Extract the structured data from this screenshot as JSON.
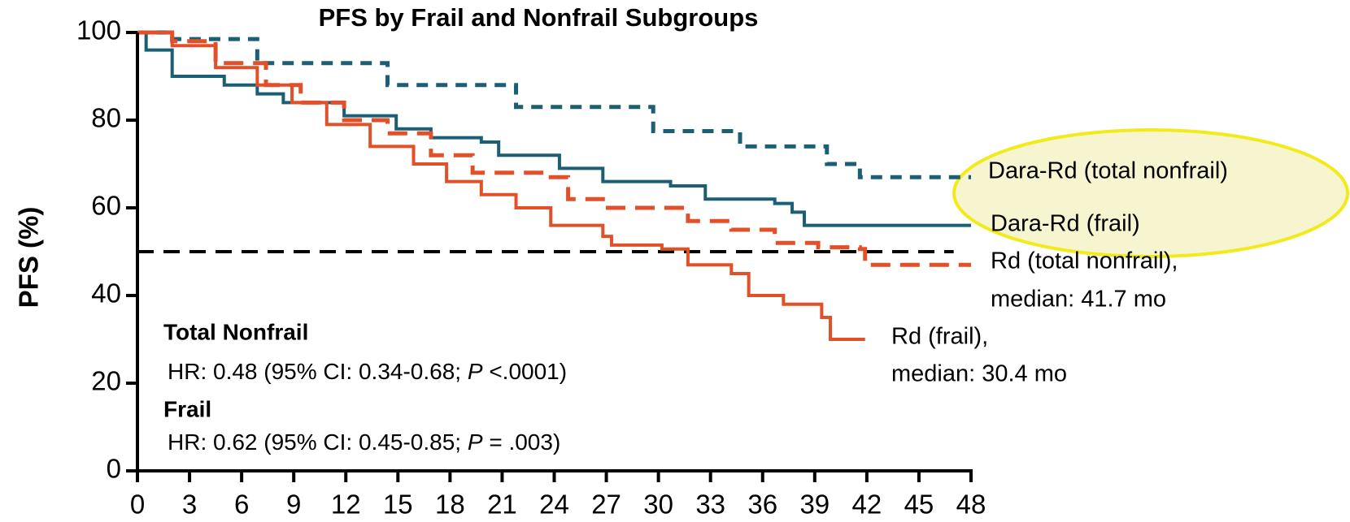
{
  "chart_data": {
    "type": "step",
    "title": "PFS by Frail and Nonfrail Subgroups",
    "ylabel": "PFS (%)",
    "xlim": [
      0,
      48
    ],
    "ylim": [
      0,
      100
    ],
    "xticks": [
      0,
      3,
      6,
      9,
      12,
      15,
      18,
      21,
      24,
      27,
      30,
      33,
      36,
      39,
      42,
      45,
      48
    ],
    "yticks": [
      0,
      20,
      40,
      60,
      80,
      100
    ],
    "reference_line": {
      "y": 50,
      "x_end": 47
    },
    "series": [
      {
        "name": "Dara-Rd (total nonfrail)",
        "color": "#1b5f77",
        "dashed": true,
        "x": [
          0,
          2,
          6.9,
          14.4,
          21.8,
          29.7,
          34.7,
          39.7,
          41.6,
          48
        ],
        "values": [
          100,
          98.5,
          93,
          88,
          83,
          77.5,
          74,
          70,
          67,
          67
        ]
      },
      {
        "name": "Dara-Rd (frail)",
        "color": "#1b5f77",
        "dashed": false,
        "x": [
          0,
          0.5,
          2,
          5,
          6.9,
          8.4,
          11.9,
          14.9,
          16.9,
          19.8,
          20.8,
          24.3,
          26.8,
          30.7,
          32.7,
          36.7,
          37.7,
          38.4,
          48
        ],
        "values": [
          100,
          96,
          90,
          88,
          86,
          84,
          81,
          78,
          76,
          75,
          72,
          69,
          66,
          65,
          62,
          61,
          59,
          56,
          56
        ]
      },
      {
        "name": "Rd (total nonfrail),",
        "median_label": "median: 41.7 mo",
        "color": "#e2502a",
        "dashed": true,
        "x": [
          0,
          2,
          4.5,
          7.4,
          9.4,
          11.9,
          14.4,
          16.9,
          19.3,
          23.8,
          24.8,
          26.8,
          31.7,
          34.2,
          36.7,
          39.2,
          41.6,
          41.9,
          48
        ],
        "values": [
          100,
          98,
          93,
          88,
          84,
          80,
          77,
          72,
          68,
          67,
          62,
          60,
          57,
          55,
          52,
          51,
          50.6,
          47,
          47
        ]
      },
      {
        "name": "Rd (frail),",
        "median_label": "median: 30.4 mo",
        "color": "#e2502a",
        "dashed": false,
        "x": [
          0,
          2,
          4.5,
          6.9,
          8.9,
          10.9,
          13.4,
          15.9,
          17.8,
          19.8,
          21.8,
          23.8,
          26.8,
          27.3,
          30.2,
          31.7,
          34.2,
          35.2,
          37.2,
          39.4,
          39.9,
          41.9
        ],
        "values": [
          100,
          97,
          92,
          88,
          84,
          79,
          74,
          70,
          66,
          63,
          60,
          56,
          53.5,
          51.5,
          50.6,
          47,
          45,
          40,
          38,
          35,
          30,
          30
        ]
      }
    ],
    "annotations": [
      {
        "heading": "Total Nonfrail",
        "text": [
          "HR: 0.48 (95% CI: 0.34-0.68; ",
          "P",
          " <.0001)"
        ]
      },
      {
        "heading": "Frail",
        "text": [
          "HR: 0.62 (95% CI: 0.45-0.85; ",
          "P",
          " = .003)"
        ]
      }
    ]
  }
}
